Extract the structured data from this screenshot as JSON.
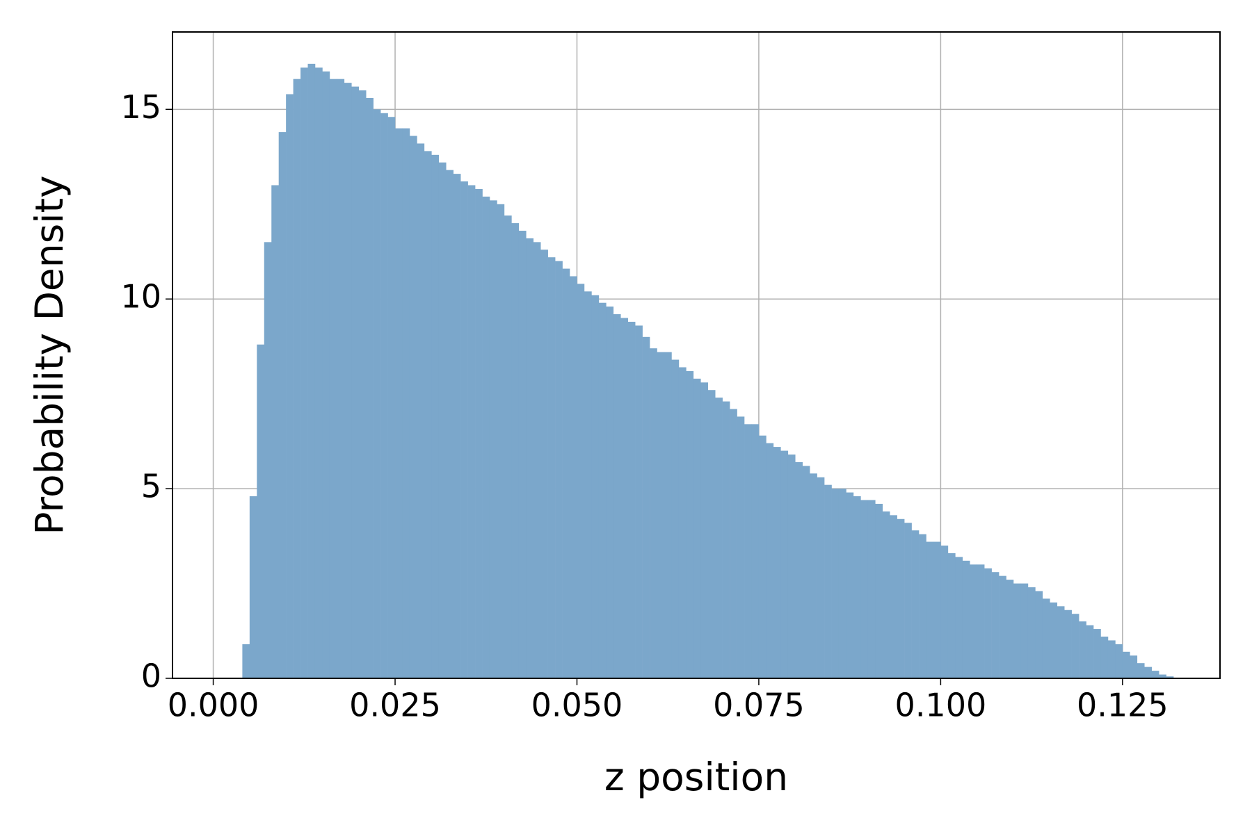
{
  "chart_data": {
    "type": "histogram",
    "xlabel": "z position",
    "ylabel": "Probability Density",
    "bins": [
      0.004,
      0.005,
      0.006,
      0.007,
      0.008,
      0.009,
      0.01,
      0.011,
      0.012,
      0.013,
      0.014,
      0.015,
      0.016,
      0.017,
      0.018,
      0.019,
      0.02,
      0.021,
      0.022,
      0.023,
      0.024,
      0.025,
      0.026,
      0.027,
      0.028,
      0.029,
      0.03,
      0.031,
      0.032,
      0.033,
      0.034,
      0.035,
      0.036,
      0.037,
      0.038,
      0.039,
      0.04,
      0.041,
      0.042,
      0.043,
      0.044,
      0.045,
      0.046,
      0.047,
      0.048,
      0.049,
      0.05,
      0.051,
      0.052,
      0.053,
      0.054,
      0.055,
      0.056,
      0.057,
      0.058,
      0.059,
      0.06,
      0.061,
      0.062,
      0.063,
      0.064,
      0.065,
      0.066,
      0.067,
      0.068,
      0.069,
      0.07,
      0.071,
      0.072,
      0.073,
      0.074,
      0.075,
      0.076,
      0.077,
      0.078,
      0.079,
      0.08,
      0.081,
      0.082,
      0.083,
      0.084,
      0.085,
      0.086,
      0.087,
      0.088,
      0.089,
      0.09,
      0.091,
      0.092,
      0.093,
      0.094,
      0.095,
      0.096,
      0.097,
      0.098,
      0.099,
      0.1,
      0.101,
      0.102,
      0.103,
      0.104,
      0.105,
      0.106,
      0.107,
      0.108,
      0.109,
      0.11,
      0.111,
      0.112,
      0.113,
      0.114,
      0.115,
      0.116,
      0.117,
      0.118,
      0.119,
      0.12,
      0.121,
      0.122,
      0.123,
      0.124,
      0.125,
      0.126,
      0.127,
      0.128,
      0.129,
      0.13,
      0.131,
      0.132
    ],
    "values": [
      0.9,
      4.8,
      8.8,
      11.5,
      13.0,
      14.4,
      15.4,
      15.8,
      16.1,
      16.2,
      16.1,
      16.0,
      15.8,
      15.8,
      15.7,
      15.6,
      15.5,
      15.3,
      15.0,
      14.9,
      14.8,
      14.5,
      14.5,
      14.3,
      14.1,
      13.9,
      13.8,
      13.6,
      13.4,
      13.3,
      13.1,
      13.0,
      12.9,
      12.7,
      12.6,
      12.5,
      12.2,
      12.0,
      11.8,
      11.6,
      11.5,
      11.3,
      11.1,
      11.0,
      10.8,
      10.6,
      10.4,
      10.2,
      10.1,
      9.9,
      9.8,
      9.6,
      9.5,
      9.4,
      9.3,
      9.0,
      8.7,
      8.6,
      8.6,
      8.4,
      8.2,
      8.1,
      7.9,
      7.8,
      7.6,
      7.4,
      7.3,
      7.1,
      6.9,
      6.7,
      6.7,
      6.4,
      6.2,
      6.1,
      6.0,
      5.9,
      5.7,
      5.6,
      5.4,
      5.3,
      5.1,
      5.0,
      5.0,
      4.9,
      4.8,
      4.7,
      4.7,
      4.6,
      4.4,
      4.3,
      4.2,
      4.1,
      3.9,
      3.8,
      3.6,
      3.6,
      3.5,
      3.3,
      3.2,
      3.1,
      3.0,
      3.0,
      2.9,
      2.8,
      2.7,
      2.6,
      2.5,
      2.5,
      2.4,
      2.3,
      2.1,
      2.0,
      1.9,
      1.8,
      1.7,
      1.5,
      1.4,
      1.3,
      1.1,
      1.0,
      0.9,
      0.7,
      0.6,
      0.4,
      0.3,
      0.2,
      0.1,
      0.05
    ],
    "color": "#7ba7cb",
    "xlim": [
      -0.0056,
      0.1384
    ],
    "ylim": [
      0,
      17.04
    ],
    "xticks": [
      {
        "value": 0,
        "label": "0.000"
      },
      {
        "value": 0.025,
        "label": "0.025"
      },
      {
        "value": 0.05,
        "label": "0.050"
      },
      {
        "value": 0.075,
        "label": "0.075"
      },
      {
        "value": 0.1,
        "label": "0.100"
      },
      {
        "value": 0.125,
        "label": "0.125"
      }
    ],
    "yticks": [
      0,
      5,
      10,
      15
    ],
    "grid": true
  }
}
